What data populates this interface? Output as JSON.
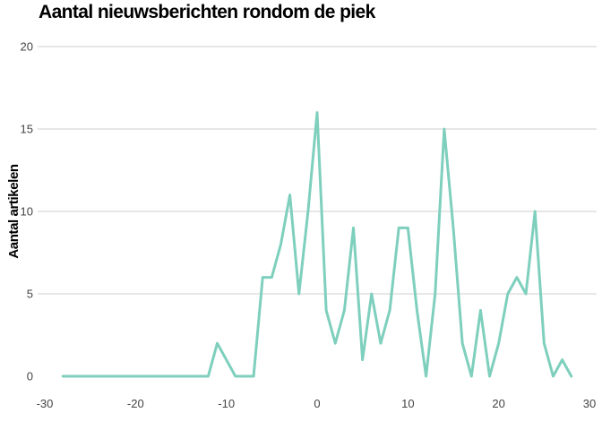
{
  "chart_data": {
    "type": "line",
    "title": "Aantal nieuwsberichten rondom de piek",
    "xlabel": "",
    "ylabel": "Aantal artikelen",
    "xlim": [
      -30,
      30
    ],
    "ylim": [
      0,
      20
    ],
    "x_ticks": [
      -30,
      -20,
      -10,
      0,
      10,
      20,
      30
    ],
    "y_ticks": [
      0,
      5,
      10,
      15,
      20
    ],
    "grid": "horizontal",
    "legend": "none",
    "series": [
      {
        "color": "#7ecfbd",
        "x": [
          -28,
          -27,
          -26,
          -25,
          -24,
          -23,
          -22,
          -21,
          -20,
          -19,
          -18,
          -17,
          -16,
          -15,
          -14,
          -13,
          -12,
          -11,
          -10,
          -9,
          -8,
          -7,
          -6,
          -5,
          -4,
          -3,
          -2,
          -1,
          0,
          1,
          2,
          3,
          4,
          5,
          6,
          7,
          8,
          9,
          10,
          11,
          12,
          13,
          14,
          15,
          16,
          17,
          18,
          19,
          20,
          21,
          22,
          23,
          24,
          25,
          26,
          27,
          28
        ],
        "y": [
          0,
          0,
          0,
          0,
          0,
          0,
          0,
          0,
          0,
          0,
          0,
          0,
          0,
          0,
          0,
          0,
          0,
          2,
          1,
          0,
          0,
          0,
          6,
          6,
          8,
          11,
          5,
          10,
          16,
          4,
          2,
          4,
          9,
          1,
          5,
          2,
          4,
          9,
          9,
          4,
          0,
          5,
          15,
          9,
          2,
          0,
          4,
          0,
          2,
          5,
          6,
          5,
          10,
          2,
          0,
          1,
          0
        ]
      }
    ]
  }
}
